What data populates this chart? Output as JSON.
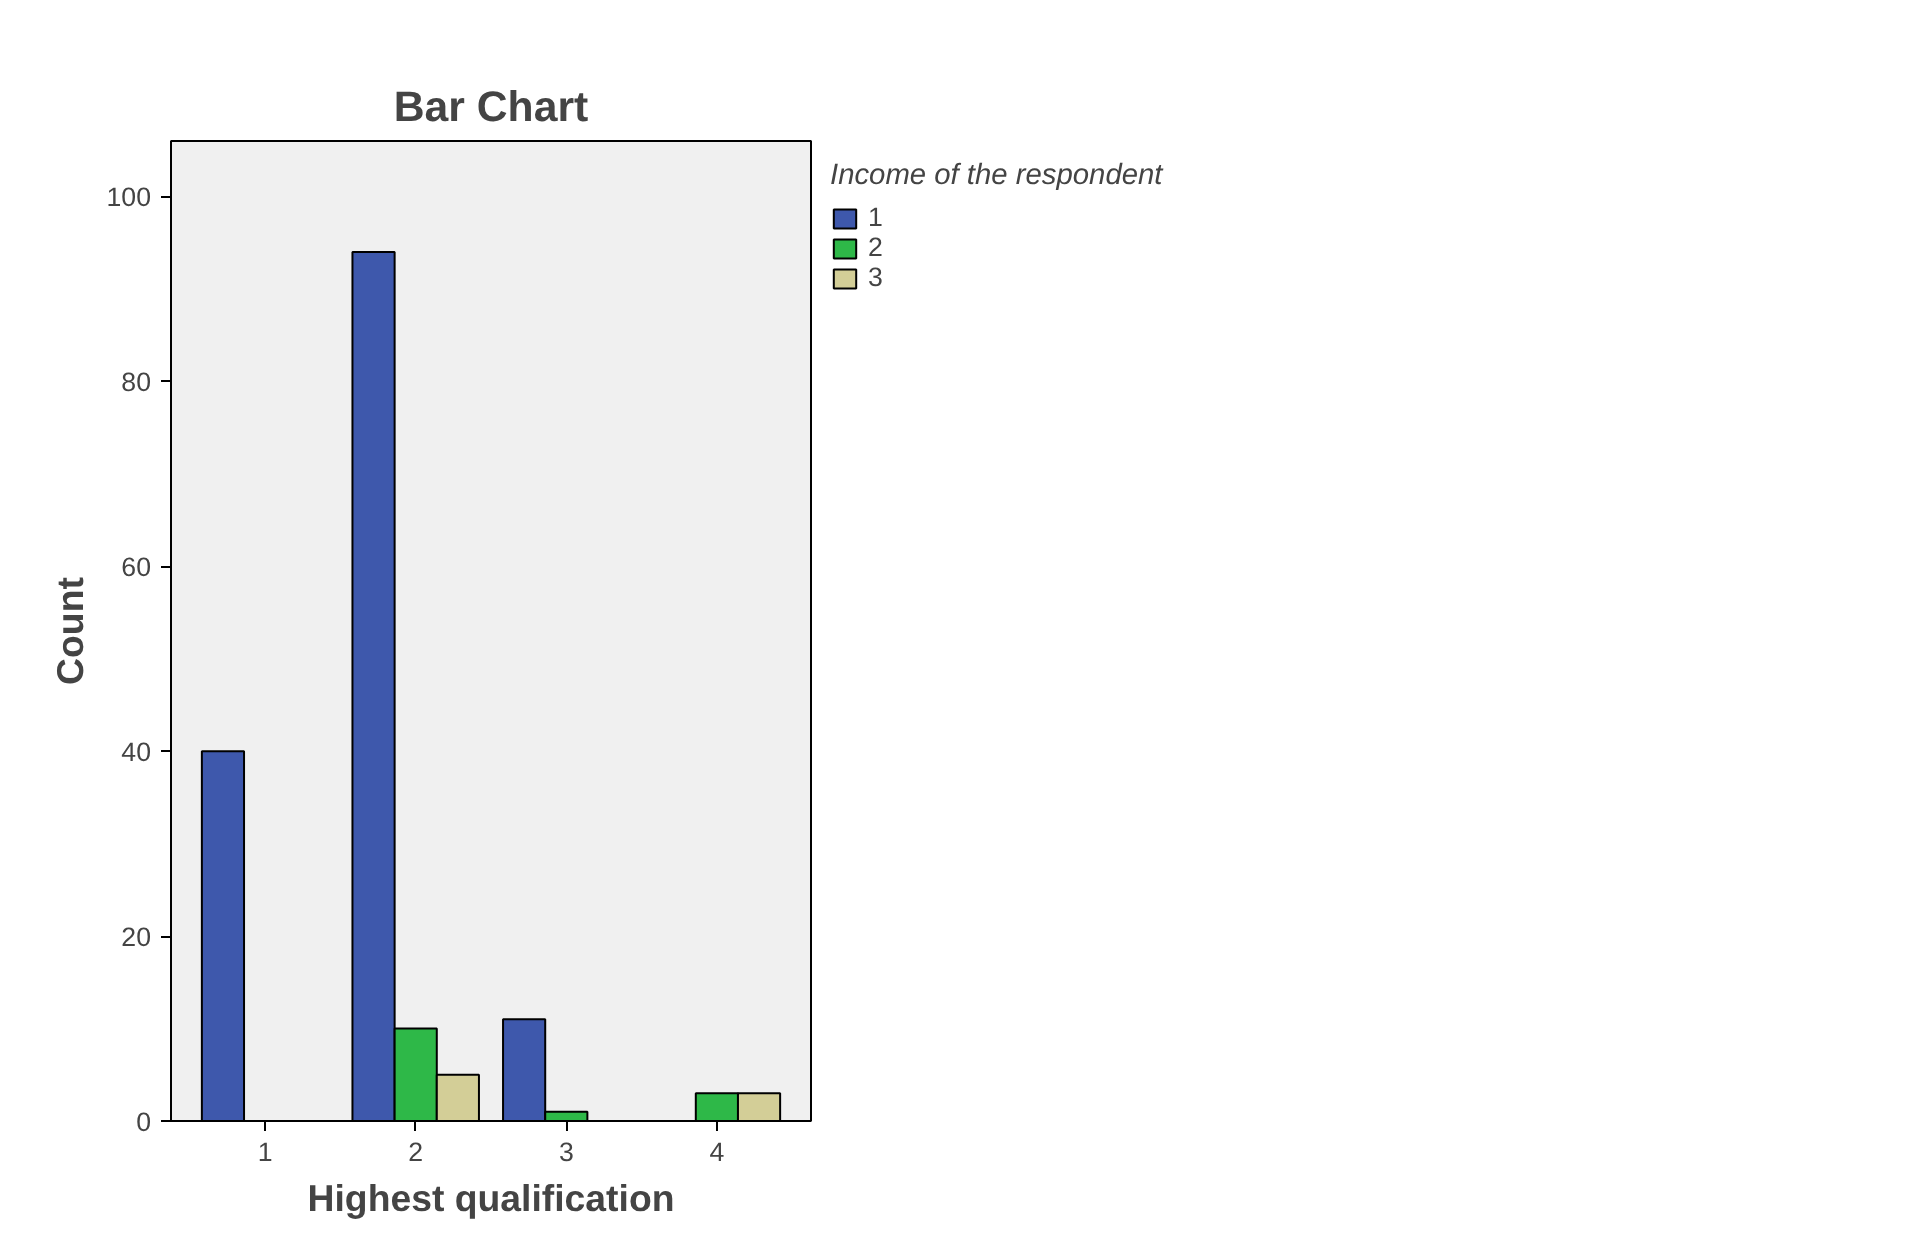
{
  "chart_data": {
    "type": "bar",
    "title": "Bar Chart",
    "xlabel": "Highest qualification",
    "ylabel": "Count",
    "legend_title": "Income of the respondent",
    "categories": [
      "1",
      "2",
      "3",
      "4"
    ],
    "series": [
      {
        "name": "1",
        "color": "#3e58ac",
        "values": [
          40,
          94,
          11,
          null
        ]
      },
      {
        "name": "2",
        "color": "#2eb848",
        "values": [
          null,
          10,
          1,
          3
        ]
      },
      {
        "name": "3",
        "color": "#d3ce97",
        "values": [
          null,
          5,
          null,
          3
        ]
      }
    ],
    "ylim": [
      0,
      106
    ],
    "yticks": [
      0,
      20,
      40,
      60,
      80,
      100
    ],
    "grid": false,
    "legend": "right"
  }
}
